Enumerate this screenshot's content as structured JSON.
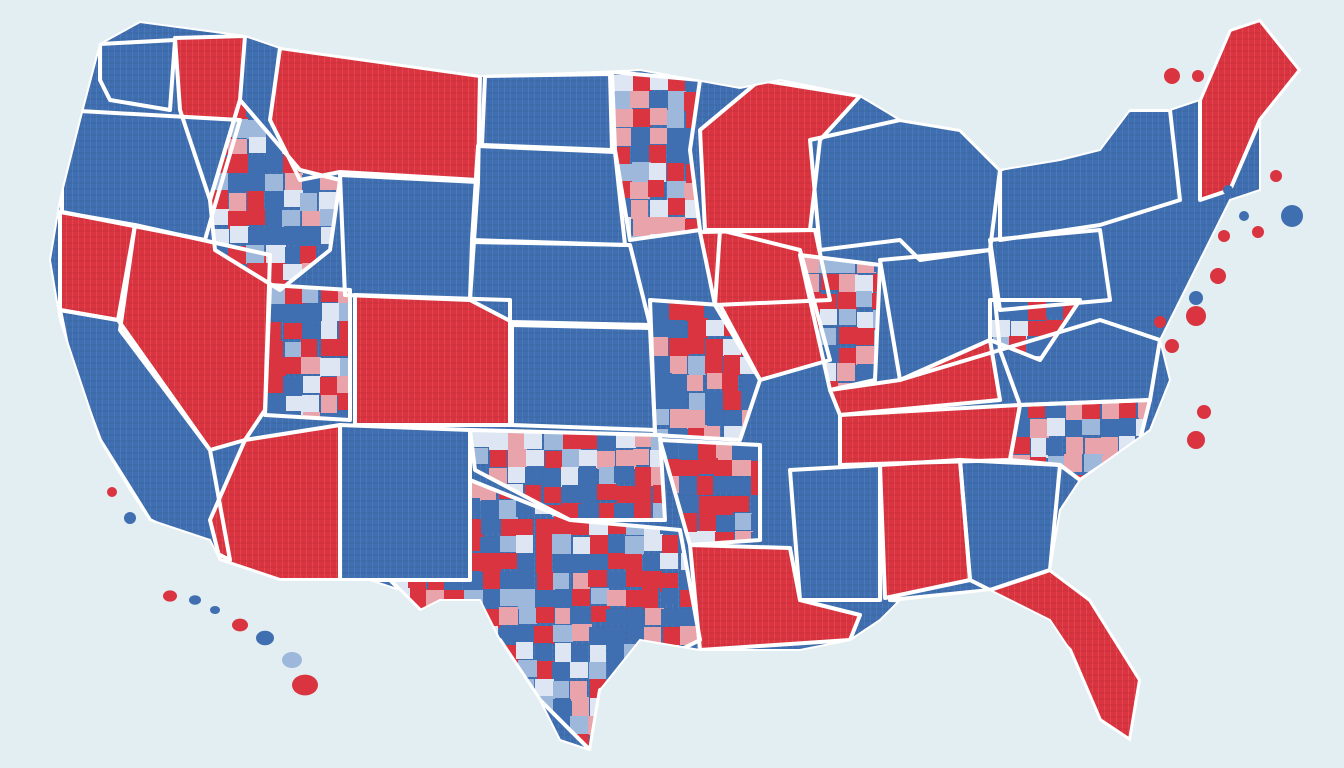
{
  "map": {
    "subject": "contiguous-united-states",
    "style": "choropleth-county-mosaic",
    "legend": null,
    "title": null
  },
  "colors": {
    "background": "#e3eef3",
    "red": "#d9343f",
    "blue": "#3f6fb0",
    "light_red": "#e9a3aa",
    "light_blue": "#9db8da",
    "pale": "#dde6f2",
    "border": "#ffffff"
  },
  "regions": [
    {
      "id": "washington",
      "fill": "blue"
    },
    {
      "id": "idaho-north",
      "fill": "red"
    },
    {
      "id": "montana",
      "fill": "red"
    },
    {
      "id": "north-dakota",
      "fill": "blue"
    },
    {
      "id": "minnesota",
      "fill": "mixed"
    },
    {
      "id": "wisconsin",
      "fill": "red"
    },
    {
      "id": "michigan",
      "fill": "blue"
    },
    {
      "id": "oregon",
      "fill": "blue"
    },
    {
      "id": "idaho",
      "fill": "mixed"
    },
    {
      "id": "wyoming",
      "fill": "blue"
    },
    {
      "id": "south-dakota",
      "fill": "blue"
    },
    {
      "id": "iowa",
      "fill": "red"
    },
    {
      "id": "california-north",
      "fill": "red"
    },
    {
      "id": "california",
      "fill": "blue"
    },
    {
      "id": "nevada",
      "fill": "red"
    },
    {
      "id": "utah",
      "fill": "mixed"
    },
    {
      "id": "colorado",
      "fill": "red"
    },
    {
      "id": "nebraska",
      "fill": "blue"
    },
    {
      "id": "kansas",
      "fill": "blue"
    },
    {
      "id": "missouri",
      "fill": "mixed"
    },
    {
      "id": "illinois",
      "fill": "red"
    },
    {
      "id": "indiana",
      "fill": "mixed"
    },
    {
      "id": "ohio",
      "fill": "blue"
    },
    {
      "id": "pennsylvania",
      "fill": "blue"
    },
    {
      "id": "new-york",
      "fill": "blue"
    },
    {
      "id": "maine",
      "fill": "red"
    },
    {
      "id": "arizona",
      "fill": "red"
    },
    {
      "id": "new-mexico",
      "fill": "blue"
    },
    {
      "id": "oklahoma",
      "fill": "mixed"
    },
    {
      "id": "texas",
      "fill": "mixed"
    },
    {
      "id": "arkansas",
      "fill": "mixed"
    },
    {
      "id": "louisiana",
      "fill": "red"
    },
    {
      "id": "mississippi",
      "fill": "blue"
    },
    {
      "id": "alabama",
      "fill": "red"
    },
    {
      "id": "georgia",
      "fill": "blue"
    },
    {
      "id": "florida",
      "fill": "red"
    },
    {
      "id": "tennessee",
      "fill": "red"
    },
    {
      "id": "kentucky",
      "fill": "red"
    },
    {
      "id": "virginia",
      "fill": "blue"
    },
    {
      "id": "north-carolina",
      "fill": "mixed"
    },
    {
      "id": "west-virginia",
      "fill": "mixed"
    }
  ]
}
